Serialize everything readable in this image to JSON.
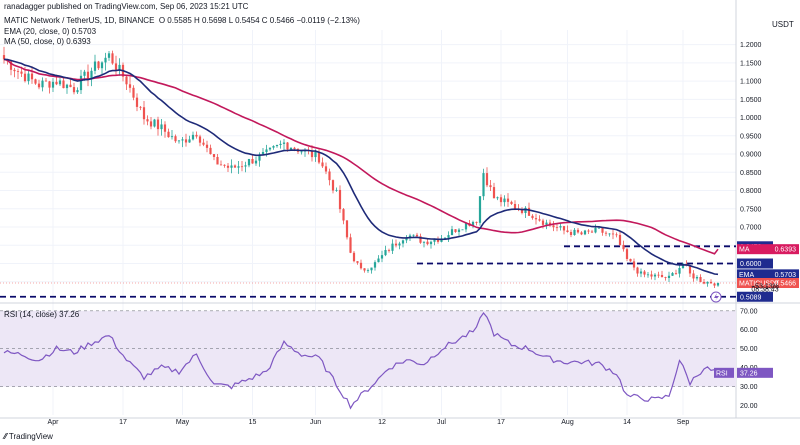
{
  "header": {
    "author_line": "ranadagger published on TradingView.com, Sep 06, 2023 15:21 UTC",
    "symbol_line": "MATIC Network / TetherUS, 1D, BINANCE",
    "ohlc": "O 0.5585  H 0.5698  L 0.5454  C 0.5466  −0.0119 (−2.13%)",
    "ema_line": "EMA (20, close, 0)  0.5703",
    "ma_line": "MA (50, close, 0)  0.6393",
    "rsi_line": "RSI (14, close)  37.26",
    "currency": "USDT",
    "brand": "TradingView"
  },
  "colors": {
    "up": "#26a69a",
    "down": "#ef5350",
    "ema": "#1e2a78",
    "ma": "#c2185b",
    "rsi": "#7e57c2",
    "rsi_band": "#ede7f6",
    "level_line": "#0a0a6a",
    "tag_blue": "#1f2b8f",
    "tag_ma": "#d81b60",
    "tag_price": "#ef5350"
  },
  "chart_data": {
    "type": "candlestick",
    "ylim": [
      0.5,
      1.24
    ],
    "y_ticks": [
      "1.2000",
      "1.1500",
      "1.1000",
      "1.0500",
      "1.0000",
      "0.9500",
      "0.9000",
      "0.8500",
      "0.8000",
      "0.7500",
      "0.7000",
      "0.6500",
      "0.6000",
      "0.5500"
    ],
    "x_ticks": [
      "Apr",
      "17",
      "May",
      "15",
      "Jun",
      "12",
      "Jul",
      "17",
      "Aug",
      "14",
      "Sep"
    ],
    "horizontal_levels": [
      0.6472,
      0.6,
      0.5089
    ],
    "price_tags": [
      {
        "label": "0.6472",
        "value": 0.6472,
        "kind": "level"
      },
      {
        "label": "MA",
        "value_text": "0.6393",
        "value": 0.6393,
        "kind": "ma"
      },
      {
        "label": "0.6000",
        "value": 0.6,
        "kind": "level"
      },
      {
        "label": "EMA",
        "value_text": "0.5703",
        "value": 0.5703,
        "kind": "ema"
      },
      {
        "label": "MATICUSDT",
        "value_text": "0.5466",
        "value": 0.5466,
        "kind": "price"
      },
      {
        "label": "−53.13%",
        "value": 0.538,
        "kind": "sub"
      },
      {
        "label": "08:38:43",
        "value": 0.53,
        "kind": "sub"
      },
      {
        "label": "0.5089",
        "value": 0.5089,
        "kind": "level"
      }
    ],
    "close_anchors": [
      [
        0,
        1.16
      ],
      [
        5,
        1.12
      ],
      [
        10,
        1.09
      ],
      [
        15,
        1.1
      ],
      [
        20,
        1.08
      ],
      [
        25,
        1.13
      ],
      [
        30,
        1.17
      ],
      [
        35,
        1.1
      ],
      [
        40,
        1.0
      ],
      [
        45,
        0.97
      ],
      [
        50,
        0.93
      ],
      [
        55,
        0.96
      ],
      [
        60,
        0.88
      ],
      [
        65,
        0.86
      ],
      [
        70,
        0.88
      ],
      [
        75,
        0.9
      ],
      [
        80,
        0.93
      ],
      [
        85,
        0.91
      ],
      [
        90,
        0.89
      ],
      [
        95,
        0.79
      ],
      [
        99,
        0.63
      ],
      [
        102,
        0.58
      ],
      [
        106,
        0.6
      ],
      [
        110,
        0.64
      ],
      [
        115,
        0.68
      ],
      [
        120,
        0.66
      ],
      [
        125,
        0.67
      ],
      [
        130,
        0.7
      ],
      [
        135,
        0.72
      ],
      [
        137,
        0.85
      ],
      [
        140,
        0.78
      ],
      [
        145,
        0.76
      ],
      [
        150,
        0.74
      ],
      [
        155,
        0.71
      ],
      [
        160,
        0.69
      ],
      [
        165,
        0.68
      ],
      [
        170,
        0.69
      ],
      [
        175,
        0.67
      ],
      [
        178,
        0.61
      ],
      [
        182,
        0.57
      ],
      [
        186,
        0.565
      ],
      [
        190,
        0.56
      ],
      [
        194,
        0.6
      ],
      [
        196,
        0.57
      ],
      [
        200,
        0.55
      ],
      [
        204,
        0.5466
      ]
    ],
    "rsi": {
      "label": "RSI",
      "last": 37.26,
      "ylim": [
        15,
        72
      ],
      "y_ticks": [
        "70.00",
        "60.00",
        "50.00",
        "40.00",
        "30.00",
        "20.00"
      ],
      "band": [
        30,
        70
      ],
      "anchors": [
        [
          0,
          48
        ],
        [
          5,
          47
        ],
        [
          10,
          44
        ],
        [
          15,
          50
        ],
        [
          20,
          48
        ],
        [
          25,
          53
        ],
        [
          30,
          57
        ],
        [
          35,
          44
        ],
        [
          40,
          35
        ],
        [
          45,
          40
        ],
        [
          50,
          38
        ],
        [
          55,
          47
        ],
        [
          60,
          31
        ],
        [
          65,
          30
        ],
        [
          70,
          34
        ],
        [
          75,
          38
        ],
        [
          80,
          53
        ],
        [
          85,
          47
        ],
        [
          90,
          45
        ],
        [
          95,
          31
        ],
        [
          99,
          20
        ],
        [
          103,
          27
        ],
        [
          107,
          34
        ],
        [
          110,
          40
        ],
        [
          115,
          44
        ],
        [
          120,
          42
        ],
        [
          125,
          50
        ],
        [
          130,
          55
        ],
        [
          135,
          60
        ],
        [
          137,
          70
        ],
        [
          140,
          58
        ],
        [
          145,
          52
        ],
        [
          150,
          50
        ],
        [
          155,
          45
        ],
        [
          160,
          43
        ],
        [
          165,
          43
        ],
        [
          170,
          42
        ],
        [
          175,
          37
        ],
        [
          178,
          25
        ],
        [
          182,
          24
        ],
        [
          186,
          23
        ],
        [
          190,
          25
        ],
        [
          193,
          44
        ],
        [
          196,
          32
        ],
        [
          200,
          40
        ],
        [
          204,
          37.26
        ]
      ]
    }
  }
}
